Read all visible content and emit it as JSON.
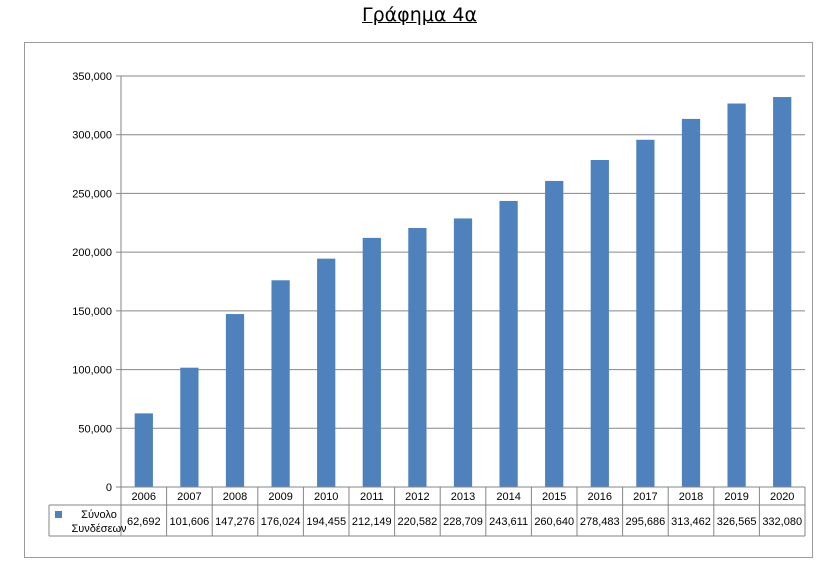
{
  "page": {
    "title": "Γράφημα 4α"
  },
  "colors": {
    "bar": "#4f81bd",
    "grid": "#868686",
    "axis": "#868686",
    "table_border": "#868686"
  },
  "chart_data": {
    "type": "bar",
    "categories": [
      "2006",
      "2007",
      "2008",
      "2009",
      "2010",
      "2011",
      "2012",
      "2013",
      "2014",
      "2015",
      "2016",
      "2017",
      "2018",
      "2019",
      "2020"
    ],
    "series": [
      {
        "name": "Σύνολο Συνδέσεων",
        "values": [
          62692,
          101606,
          147276,
          176024,
          194455,
          212149,
          220582,
          228709,
          243611,
          260640,
          278483,
          295686,
          313462,
          326565,
          332080
        ],
        "labels": [
          "62,692",
          "101,606",
          "147,276",
          "176,024",
          "194,455",
          "212,149",
          "220,582",
          "228,709",
          "243,611",
          "260,640",
          "278,483",
          "295,686",
          "313,462",
          "326,565",
          "332,080"
        ]
      }
    ],
    "legend_lines": [
      "Σύνολο",
      "Συνδέσεων"
    ],
    "ylim": [
      0,
      350000
    ],
    "y_ticks": [
      0,
      50000,
      100000,
      150000,
      200000,
      250000,
      300000,
      350000
    ],
    "y_tick_labels": [
      "0",
      "50,000",
      "100,000",
      "150,000",
      "200,000",
      "250,000",
      "300,000",
      "350,000"
    ],
    "grid": true,
    "legend_position": "data-table",
    "xlabel": "",
    "ylabel": ""
  }
}
